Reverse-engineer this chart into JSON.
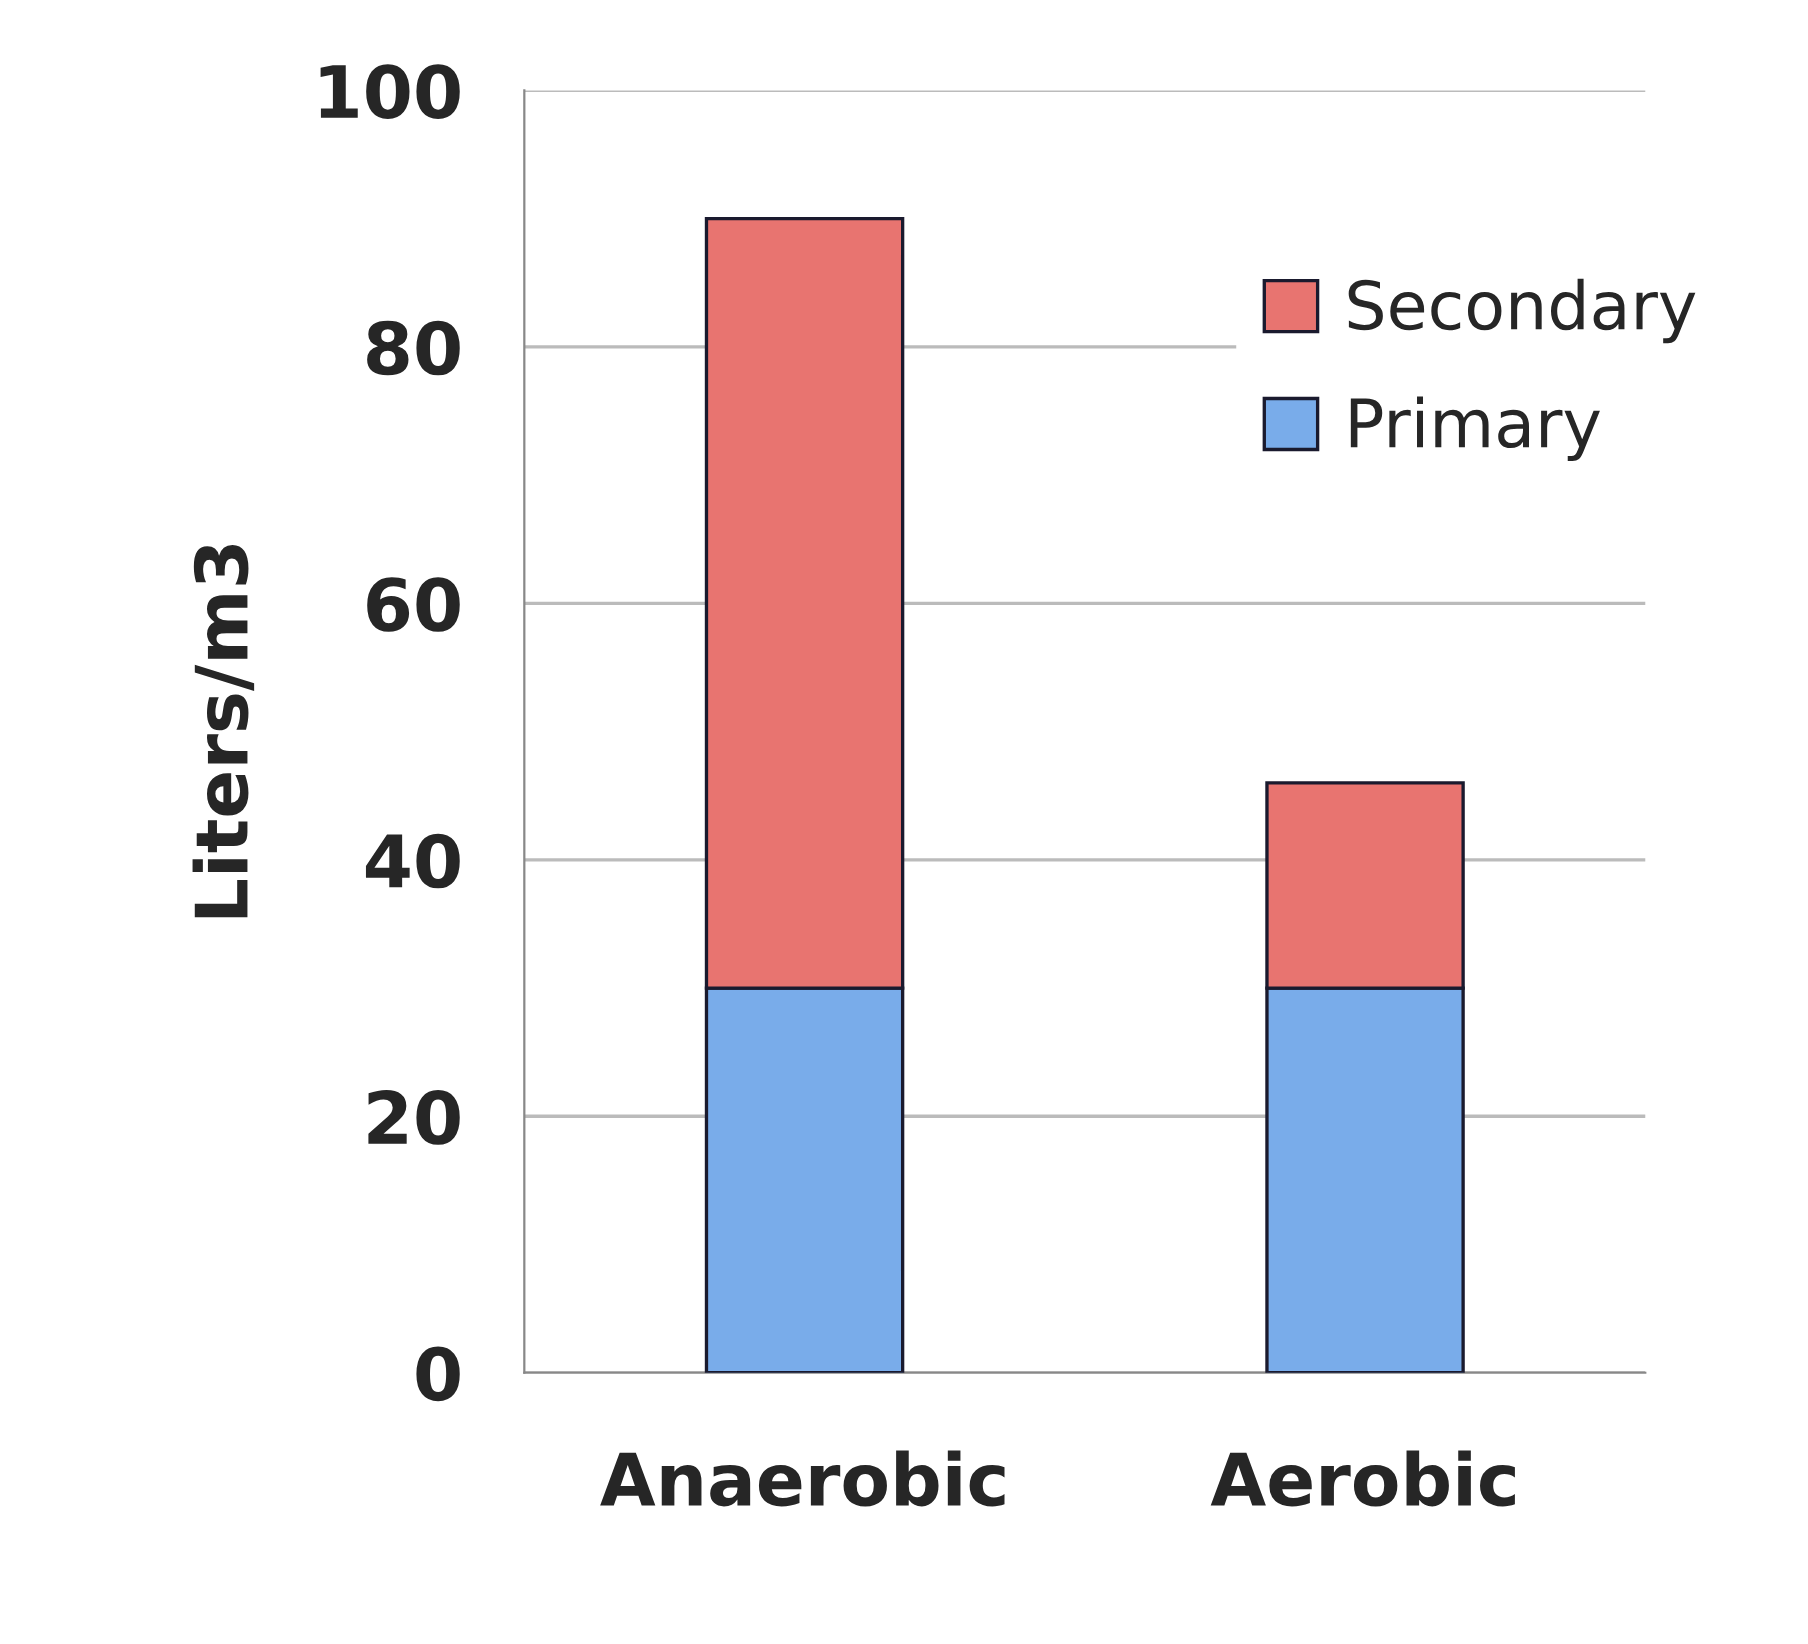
{
  "chart_data": {
    "type": "bar",
    "ylabel": "Liters/m3",
    "categories": [
      "Anaerobic",
      "Aerobic"
    ],
    "stacked": true,
    "series": [
      {
        "name": "Primary",
        "color": "#79acea",
        "values": [
          30,
          30
        ]
      },
      {
        "name": "Secondary",
        "color": "#e87470",
        "values": [
          60,
          16
        ]
      }
    ],
    "ylim": [
      0,
      100
    ],
    "yticks": [
      0,
      20,
      40,
      60,
      80,
      100
    ],
    "grid": "y",
    "legend": "top right"
  }
}
